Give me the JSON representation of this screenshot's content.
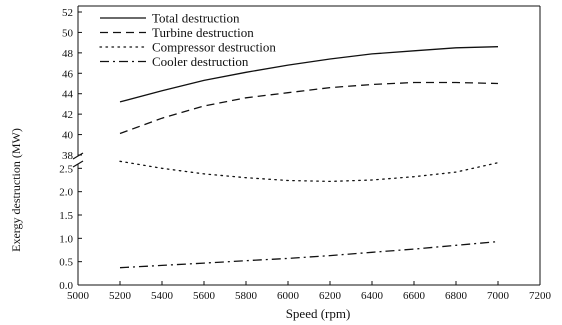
{
  "chart_data": {
    "type": "line",
    "xlabel": "Speed (rpm)",
    "ylabel": "Exergy destruction (MW)",
    "xlim": [
      5000,
      7200
    ],
    "x_ticks": [
      5000,
      5200,
      5400,
      5600,
      5800,
      6000,
      6200,
      6400,
      6600,
      6800,
      7000,
      7200
    ],
    "y_axis_broken": true,
    "y_upper_range": [
      38,
      52
    ],
    "y_upper_ticks": [
      "38",
      "40",
      "42",
      "44",
      "46",
      "48",
      "50",
      "52"
    ],
    "y_lower_range": [
      0.0,
      3.0
    ],
    "y_lower_ticks": [
      "0.0",
      "0.5",
      "1.0",
      "1.5",
      "2.0",
      "2.5"
    ],
    "grid": false,
    "legend_position": "top-left",
    "x": [
      5200,
      5400,
      5600,
      5800,
      6000,
      6200,
      6400,
      6600,
      6800,
      7000
    ],
    "series": [
      {
        "name": "Total destruction",
        "style": "solid",
        "segment": "upper",
        "values": [
          43.2,
          44.3,
          45.3,
          46.1,
          46.8,
          47.4,
          47.9,
          48.2,
          48.5,
          48.6
        ]
      },
      {
        "name": "Turbine destruction",
        "style": "dashed",
        "segment": "upper",
        "values": [
          40.1,
          41.6,
          42.8,
          43.6,
          44.1,
          44.6,
          44.9,
          45.1,
          45.1,
          45.0
        ]
      },
      {
        "name": "Compressor destruction",
        "style": "dotted",
        "segment": "lower",
        "values": [
          2.65,
          2.5,
          2.38,
          2.3,
          2.24,
          2.22,
          2.25,
          2.32,
          2.42,
          2.62
        ]
      },
      {
        "name": "Cooler destruction",
        "style": "dashdot",
        "segment": "lower",
        "values": [
          0.37,
          0.42,
          0.47,
          0.52,
          0.57,
          0.63,
          0.7,
          0.77,
          0.85,
          0.93
        ]
      }
    ]
  }
}
